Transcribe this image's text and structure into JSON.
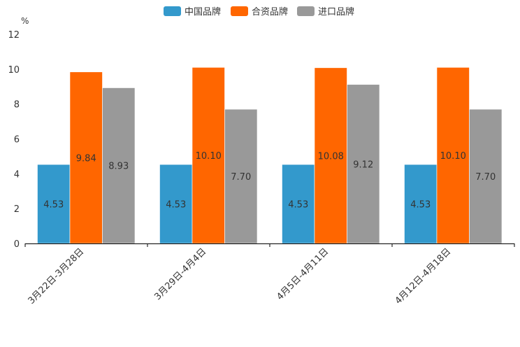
{
  "chart_data": {
    "type": "bar",
    "title": "",
    "xlabel": "",
    "ylabel": "%",
    "ylim": [
      0,
      12
    ],
    "yticks": [
      0,
      2,
      4,
      6,
      8,
      10,
      12
    ],
    "categories": [
      "3月22日-3月28日",
      "3月29日-4月4日",
      "4月5日-4月11日",
      "4月12日-4月18日"
    ],
    "series": [
      {
        "name": "中国品牌",
        "color": "#3399cc",
        "values": [
          4.53,
          4.53,
          4.53,
          4.53
        ],
        "labels": [
          "4.53",
          "4.53",
          "4.53",
          "4.53"
        ]
      },
      {
        "name": "合资品牌",
        "color": "#ff6600",
        "values": [
          9.84,
          10.1,
          10.08,
          10.1
        ],
        "labels": [
          "9.84",
          "10.10",
          "10.08",
          "10.10"
        ]
      },
      {
        "name": "进口品牌",
        "color": "#999999",
        "values": [
          8.93,
          7.7,
          9.12,
          7.7
        ],
        "labels": [
          "8.93",
          "7.70",
          "9.12",
          "7.70"
        ]
      }
    ],
    "legend_position": "top-center",
    "grid": false
  }
}
